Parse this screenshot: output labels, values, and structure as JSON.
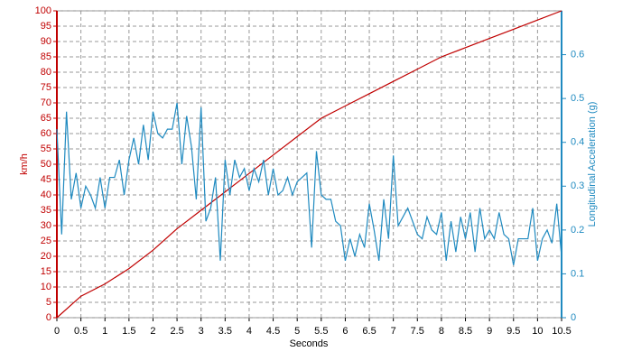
{
  "chart_data": {
    "type": "line",
    "x_label": "Seconds",
    "y_label": "km/h",
    "y2_label": "Longitudinal Acceleration (g)",
    "xlim": [
      0,
      10.5
    ],
    "xticks": [
      0,
      0.5,
      1,
      1.5,
      2,
      2.5,
      3,
      3.5,
      4,
      4.5,
      5,
      5.5,
      6,
      6.5,
      7,
      7.5,
      8,
      8.5,
      9,
      9.5,
      10,
      10.5
    ],
    "ylim": [
      0,
      100
    ],
    "yticks": [
      0,
      5,
      10,
      15,
      20,
      25,
      30,
      35,
      40,
      45,
      50,
      55,
      60,
      65,
      70,
      75,
      80,
      85,
      90,
      95,
      100
    ],
    "y2lim": [
      0,
      0.7
    ],
    "y2ticks": [
      0,
      0.1,
      0.2,
      0.3,
      0.4,
      0.5,
      0.6
    ],
    "grid": true,
    "y_color": "#c00000",
    "y2_color": "#1f8ac0",
    "series": [
      {
        "name": "km/h",
        "color": "#c00000",
        "x": [
          0,
          0.5,
          1,
          1.5,
          2,
          2.5,
          3,
          3.5,
          4,
          4.5,
          5,
          5.5,
          6,
          6.5,
          7,
          7.5,
          8,
          8.5,
          9,
          9.5,
          10,
          10.5
        ],
        "values": [
          0,
          7,
          11,
          16,
          22,
          29,
          35,
          41,
          47,
          53,
          59,
          65,
          69,
          73,
          77,
          81,
          85,
          88,
          91,
          94,
          97,
          100
        ]
      },
      {
        "name": "Longitudinal Acceleration (g)",
        "color": "#1f8ac0",
        "axis": "y2",
        "x": [
          0,
          0.1,
          0.2,
          0.3,
          0.4,
          0.5,
          0.6,
          0.7,
          0.8,
          0.9,
          1,
          1.1,
          1.2,
          1.3,
          1.4,
          1.5,
          1.6,
          1.7,
          1.8,
          1.9,
          2,
          2.1,
          2.2,
          2.3,
          2.4,
          2.5,
          2.6,
          2.7,
          2.8,
          2.9,
          3,
          3.1,
          3.2,
          3.3,
          3.4,
          3.5,
          3.6,
          3.7,
          3.8,
          3.9,
          4,
          4.1,
          4.2,
          4.3,
          4.4,
          4.5,
          4.6,
          4.7,
          4.8,
          4.9,
          5,
          5.1,
          5.2,
          5.3,
          5.4,
          5.5,
          5.6,
          5.7,
          5.8,
          5.9,
          6,
          6.1,
          6.2,
          6.3,
          6.4,
          6.5,
          6.6,
          6.7,
          6.8,
          6.9,
          7,
          7.1,
          7.2,
          7.3,
          7.4,
          7.5,
          7.6,
          7.7,
          7.8,
          7.9,
          8,
          8.1,
          8.2,
          8.3,
          8.4,
          8.5,
          8.6,
          8.7,
          8.8,
          8.9,
          9,
          9.1,
          9.2,
          9.3,
          9.4,
          9.5,
          9.6,
          9.7,
          9.8,
          9.9,
          10,
          10.1,
          10.2,
          10.3,
          10.4,
          10.5
        ],
        "values": [
          0.43,
          0.19,
          0.47,
          0.27,
          0.33,
          0.25,
          0.3,
          0.28,
          0.25,
          0.32,
          0.25,
          0.32,
          0.32,
          0.36,
          0.28,
          0.36,
          0.41,
          0.35,
          0.44,
          0.36,
          0.47,
          0.42,
          0.41,
          0.43,
          0.43,
          0.49,
          0.35,
          0.46,
          0.39,
          0.27,
          0.48,
          0.22,
          0.25,
          0.32,
          0.13,
          0.36,
          0.28,
          0.36,
          0.32,
          0.34,
          0.29,
          0.34,
          0.31,
          0.36,
          0.28,
          0.34,
          0.28,
          0.29,
          0.32,
          0.28,
          0.31,
          0.32,
          0.33,
          0.16,
          0.38,
          0.28,
          0.27,
          0.27,
          0.22,
          0.21,
          0.13,
          0.18,
          0.14,
          0.19,
          0.16,
          0.26,
          0.2,
          0.13,
          0.27,
          0.18,
          0.37,
          0.21,
          0.23,
          0.25,
          0.22,
          0.19,
          0.18,
          0.23,
          0.2,
          0.19,
          0.24,
          0.13,
          0.22,
          0.15,
          0.23,
          0.18,
          0.24,
          0.15,
          0.25,
          0.18,
          0.2,
          0.18,
          0.24,
          0.19,
          0.18,
          0.12,
          0.18,
          0.18,
          0.18,
          0.25,
          0.13,
          0.18,
          0.2,
          0.17,
          0.26,
          0.14
        ]
      }
    ]
  }
}
